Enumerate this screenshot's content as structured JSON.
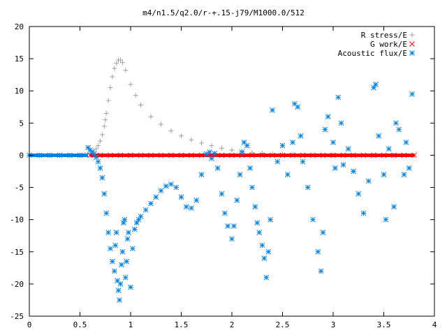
{
  "chart_data": {
    "type": "scatter",
    "title": "m4/n1.5/q2.0/r-+.15-j79/M1000.0/512",
    "xlabel": "",
    "ylabel": "",
    "xlim": [
      0,
      4
    ],
    "ylim": [
      -25,
      20
    ],
    "xticks": [
      "0",
      "0.5",
      "1",
      "1.5",
      "2",
      "2.5",
      "3",
      "3.5",
      "4"
    ],
    "yticks": [
      "20",
      "15",
      "10",
      "5",
      "0",
      "-5",
      "-10",
      "-15",
      "-20",
      "-25"
    ],
    "grid": false,
    "legend_position": "top-right",
    "series": [
      {
        "name": "R stress/E",
        "color": "#a0a0a0",
        "marker": "plus",
        "x": [
          0.0,
          0.2,
          0.4,
          0.5,
          0.55,
          0.6,
          0.63,
          0.66,
          0.68,
          0.7,
          0.72,
          0.74,
          0.75,
          0.76,
          0.78,
          0.8,
          0.82,
          0.84,
          0.86,
          0.88,
          0.9,
          0.92,
          0.95,
          1.0,
          1.05,
          1.1,
          1.2,
          1.3,
          1.4,
          1.5,
          1.6,
          1.7,
          1.8,
          1.9,
          2.0,
          2.1,
          2.2,
          2.3,
          2.4,
          2.5,
          2.6,
          2.8,
          3.0,
          3.2,
          3.4,
          3.6,
          3.8
        ],
        "y": [
          0.0,
          0.0,
          0.0,
          0.0,
          0.1,
          0.3,
          0.6,
          1.0,
          1.5,
          2.2,
          3.2,
          4.5,
          5.5,
          6.5,
          8.5,
          10.5,
          12.2,
          13.5,
          14.3,
          14.8,
          14.8,
          14.4,
          13.2,
          11.0,
          9.3,
          7.8,
          6.0,
          4.8,
          3.8,
          3.0,
          2.4,
          1.9,
          1.5,
          1.1,
          0.8,
          0.6,
          0.4,
          0.3,
          0.2,
          0.15,
          0.1,
          0.05,
          0.03,
          0.02,
          0.01,
          0.01,
          0.0
        ]
      },
      {
        "name": "G work/E",
        "color": "#ff0000",
        "marker": "cross",
        "x": [
          0.6,
          0.7,
          0.8,
          0.9,
          1.0,
          1.1,
          1.2,
          1.3,
          1.4,
          1.5,
          1.6,
          1.7,
          1.8,
          1.9,
          2.0,
          2.1,
          2.2,
          2.3,
          2.4,
          2.5,
          2.6,
          2.7,
          2.8,
          2.9,
          3.0,
          3.1,
          3.2,
          3.3,
          3.4,
          3.5,
          3.6,
          3.7,
          3.8
        ],
        "y": [
          0.0,
          0.0,
          0.0,
          0.0,
          0.0,
          0.0,
          0.0,
          0.0,
          0.0,
          0.0,
          0.0,
          0.0,
          0.0,
          0.0,
          0.0,
          0.0,
          0.0,
          0.0,
          0.0,
          0.0,
          0.0,
          0.0,
          0.0,
          0.0,
          0.0,
          0.0,
          0.0,
          0.0,
          0.0,
          0.0,
          0.0,
          0.0,
          0.0
        ]
      },
      {
        "name": "Acoustic flux/E",
        "color": "#0080e0",
        "marker": "star",
        "x": [
          0.0,
          0.1,
          0.2,
          0.3,
          0.4,
          0.5,
          0.58,
          0.6,
          0.62,
          0.64,
          0.66,
          0.68,
          0.7,
          0.72,
          0.74,
          0.76,
          0.78,
          0.8,
          0.82,
          0.84,
          0.85,
          0.86,
          0.87,
          0.88,
          0.89,
          0.9,
          0.91,
          0.92,
          0.93,
          0.94,
          0.95,
          0.96,
          0.97,
          0.98,
          1.0,
          1.02,
          1.04,
          1.06,
          1.08,
          1.1,
          1.15,
          1.2,
          1.25,
          1.3,
          1.35,
          1.4,
          1.45,
          1.5,
          1.55,
          1.6,
          1.65,
          1.7,
          1.75,
          1.78,
          1.8,
          1.83,
          1.86,
          1.9,
          1.93,
          1.96,
          2.0,
          2.02,
          2.05,
          2.08,
          2.1,
          2.12,
          2.15,
          2.18,
          2.2,
          2.23,
          2.25,
          2.27,
          2.3,
          2.32,
          2.34,
          2.36,
          2.38,
          2.4,
          2.45,
          2.5,
          2.55,
          2.6,
          2.62,
          2.65,
          2.68,
          2.7,
          2.75,
          2.8,
          2.85,
          2.88,
          2.9,
          2.92,
          2.95,
          3.0,
          3.02,
          3.05,
          3.08,
          3.1,
          3.15,
          3.2,
          3.25,
          3.3,
          3.35,
          3.4,
          3.42,
          3.45,
          3.5,
          3.52,
          3.55,
          3.6,
          3.62,
          3.65,
          3.7,
          3.72,
          3.75,
          3.78
        ],
        "y": [
          0.0,
          0.0,
          0.0,
          0.0,
          0.0,
          0.0,
          1.2,
          0.8,
          0.5,
          0.2,
          -0.3,
          -1.0,
          -2.0,
          -3.5,
          -6.0,
          -9.0,
          -12.0,
          -14.5,
          -16.5,
          -18.0,
          -14.0,
          -12.0,
          -19.5,
          -21.0,
          -22.5,
          -20.0,
          -17.0,
          -15.0,
          -10.5,
          -10.0,
          -19.0,
          -16.5,
          -13.0,
          -12.0,
          -20.5,
          -14.5,
          -11.5,
          -10.5,
          -10.0,
          -9.5,
          -8.5,
          -7.5,
          -6.5,
          -5.5,
          -4.8,
          -4.5,
          -5.0,
          -6.5,
          -8.0,
          -8.2,
          -7.0,
          -3.0,
          0.2,
          0.5,
          -0.5,
          0.3,
          -2.0,
          -6.0,
          -9.0,
          -11.0,
          -13.0,
          -11.0,
          -7.0,
          -3.0,
          0.5,
          2.0,
          1.5,
          -2.0,
          -5.0,
          -8.0,
          -10.5,
          -12.0,
          -14.0,
          -16.0,
          -19.0,
          -15.0,
          -10.0,
          7.0,
          -1.0,
          1.5,
          -3.0,
          2.0,
          8.0,
          7.5,
          3.0,
          -1.0,
          -5.0,
          -10.0,
          -15.0,
          -18.0,
          -12.0,
          4.0,
          6.0,
          2.0,
          -2.0,
          9.0,
          5.0,
          -1.5,
          1.0,
          -2.5,
          -6.0,
          -9.0,
          -4.0,
          10.5,
          11.0,
          3.0,
          -3.0,
          -10.0,
          1.0,
          -8.0,
          5.0,
          4.0,
          -3.0,
          2.0,
          -2.0,
          9.5
        ]
      }
    ]
  }
}
